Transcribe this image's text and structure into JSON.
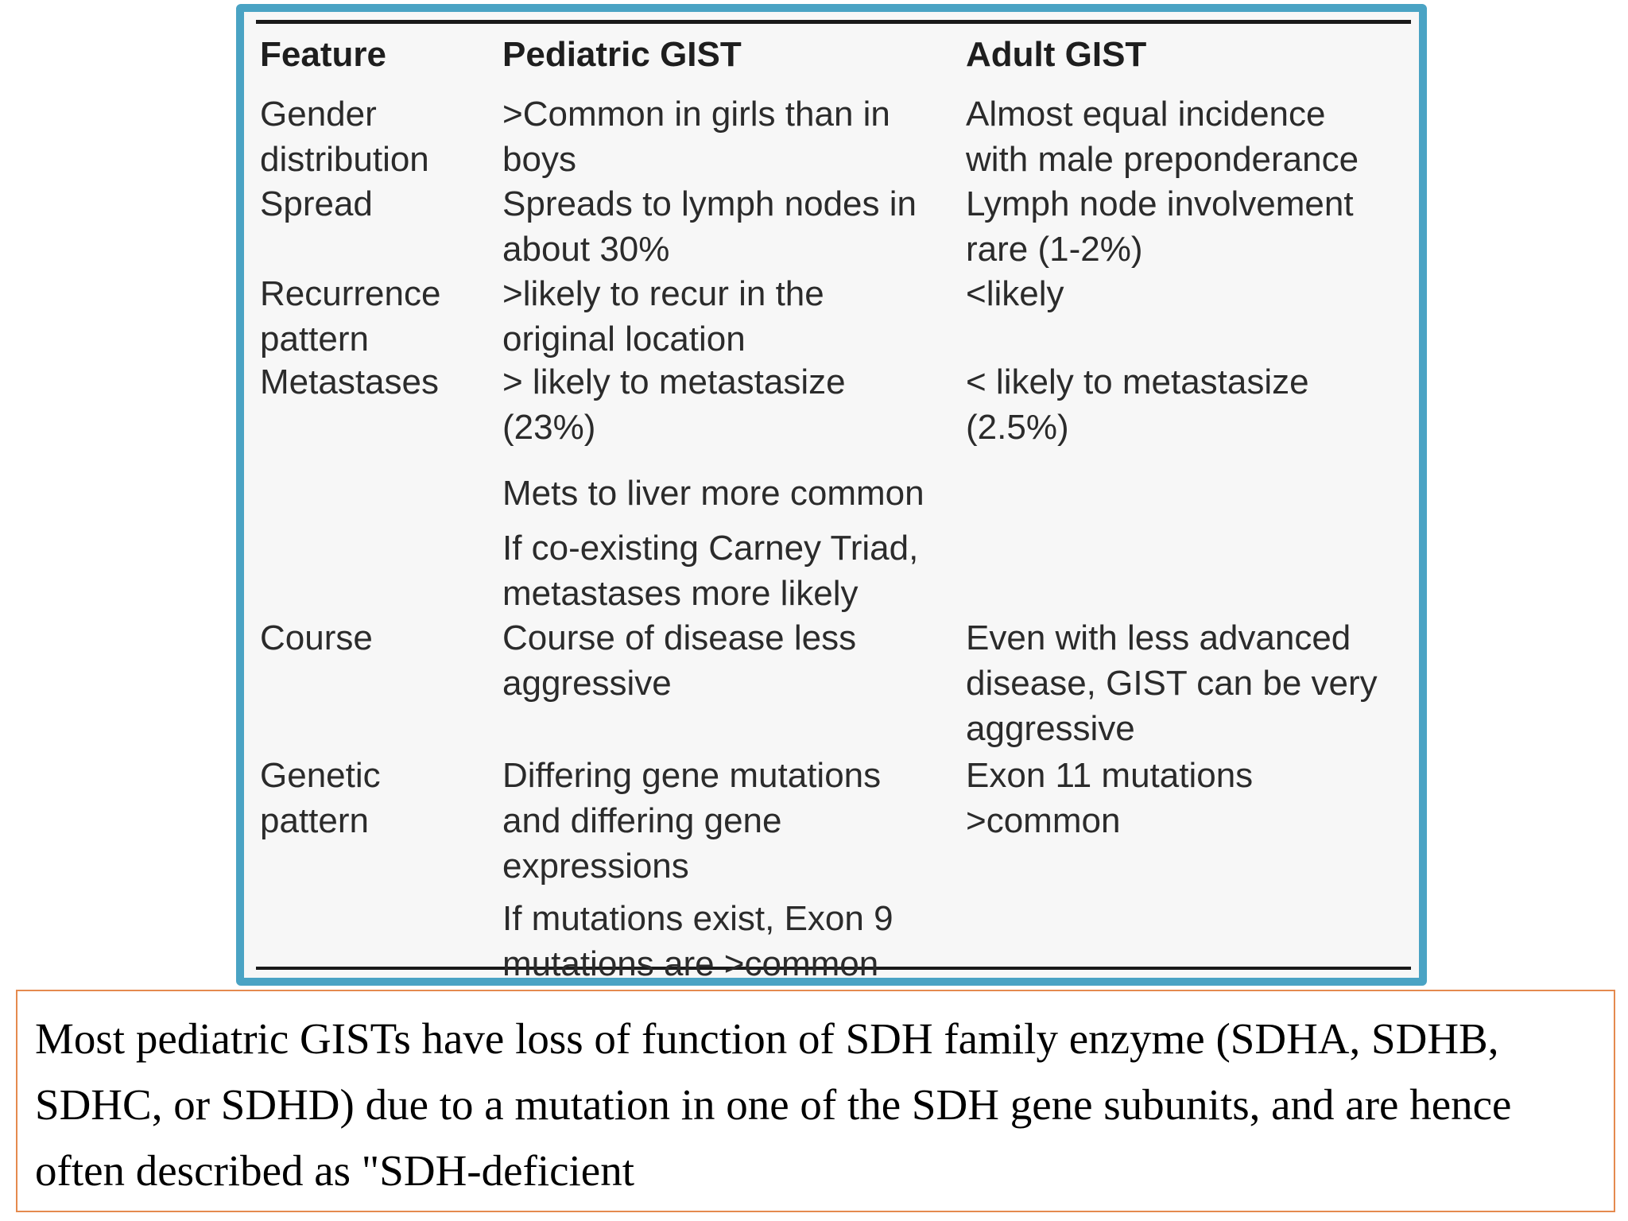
{
  "table": {
    "headers": {
      "feature": "Feature",
      "pediatric": "Pediatric GIST",
      "adult": "Adult GIST"
    },
    "rows": [
      {
        "feature": "Gender\ndistribution",
        "pediatric": ">Common in girls than in\nboys",
        "adult": "Almost equal incidence\nwith male preponderance"
      },
      {
        "feature": "Spread",
        "pediatric": "Spreads to lymph nodes in\nabout 30%",
        "adult": "Lymph node involvement\nrare (1-2%)"
      },
      {
        "feature": "Recurrence\npattern",
        "pediatric": ">likely to recur in the\noriginal location",
        "adult": "<likely"
      },
      {
        "feature": "Metastases",
        "pediatric": "> likely to metastasize\n(23%)",
        "adult": "< likely to metastasize\n(2.5%)"
      },
      {
        "feature": "",
        "pediatric": "Mets to liver more common",
        "adult": ""
      },
      {
        "feature": "",
        "pediatric": "If co-existing Carney Triad,\nmetastases more likely",
        "adult": ""
      },
      {
        "feature": "Course",
        "pediatric": "Course of disease less\naggressive",
        "adult": "Even with less advanced\ndisease, GIST can be very\naggressive"
      },
      {
        "feature": "Genetic\npattern",
        "pediatric": "Differing gene mutations\nand differing gene\nexpressions",
        "adult": "Exon 11 mutations\n>common"
      },
      {
        "feature": "",
        "pediatric": "If mutations exist, Exon 9\nmutations are >common",
        "adult": ""
      }
    ]
  },
  "note": {
    "text": "Most pediatric GISTs have loss of function of SDH family enzyme (SDHA, SDHB, SDHC, or SDHD) due to a mutation in one of the SDH gene subunits, and are hence often described as \"SDH-deficient"
  },
  "colors": {
    "frame_border": "#4aa3c4",
    "note_border": "#e58a4e",
    "table_background": "#f7f7f7"
  }
}
